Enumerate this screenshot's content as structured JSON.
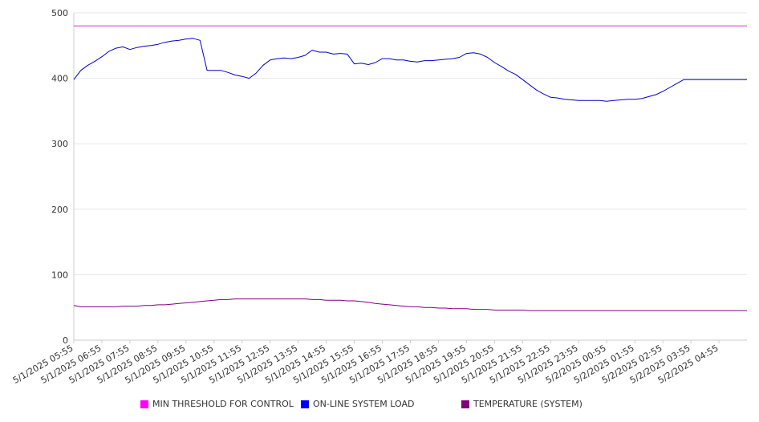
{
  "chart_data": {
    "type": "line",
    "title": "",
    "xlabel": "",
    "ylabel": "",
    "ylim": [
      0,
      500
    ],
    "yticks": [
      0,
      100,
      200,
      300,
      400,
      500
    ],
    "grid": true,
    "legend_position": "bottom",
    "x_tick_labels": [
      "5/1/2025 05:55",
      "5/1/2025 06:55",
      "5/1/2025 07:55",
      "5/1/2025 08:55",
      "5/1/2025 09:55",
      "5/1/2025 10:55",
      "5/1/2025 11:55",
      "5/1/2025 12:55",
      "5/1/2025 13:55",
      "5/1/2025 14:55",
      "5/1/2025 15:55",
      "5/1/2025 16:55",
      "5/1/2025 17:55",
      "5/1/2025 18:55",
      "5/1/2025 19:55",
      "5/1/2025 20:55",
      "5/1/2025 21:55",
      "5/1/2025 22:55",
      "5/1/2025 23:55",
      "5/2/2025 00:55",
      "5/2/2025 01:55",
      "5/2/2025 02:55",
      "5/2/2025 03:55",
      "5/2/2025 04:55"
    ],
    "x_hours": [
      0,
      0.25,
      0.5,
      0.75,
      1.0,
      1.25,
      1.5,
      1.75,
      2.0,
      2.25,
      2.5,
      2.75,
      3.0,
      3.25,
      3.5,
      3.75,
      4.0,
      4.25,
      4.5,
      4.75,
      5.0,
      5.25,
      5.5,
      5.75,
      6.0,
      6.25,
      6.5,
      6.75,
      7.0,
      7.25,
      7.5,
      7.75,
      8.0,
      8.25,
      8.5,
      8.75,
      9.0,
      9.25,
      9.5,
      9.75,
      10.0,
      10.25,
      10.5,
      10.75,
      11.0,
      11.25,
      11.5,
      11.75,
      12.0,
      12.25,
      12.5,
      12.75,
      13.0,
      13.25,
      13.5,
      13.75,
      14.0,
      14.25,
      14.5,
      14.75,
      15.0,
      15.25,
      15.5,
      15.75,
      16.0,
      16.25,
      16.5,
      16.75,
      17.0,
      17.25,
      17.5,
      17.75,
      18.0,
      18.25,
      18.5,
      18.75,
      19.0,
      19.25,
      19.5,
      19.75,
      20.0,
      20.25,
      20.5,
      20.75,
      21.0,
      21.25,
      21.5,
      21.75,
      22.0,
      22.25,
      22.5,
      22.75,
      23.0,
      23.25,
      23.5,
      23.75,
      24.0
    ],
    "series": [
      {
        "name": "MIN THRESHOLD FOR CONTROL",
        "color": "#cc33cc",
        "values": [
          480,
          480,
          480,
          480,
          480,
          480,
          480,
          480,
          480,
          480,
          480,
          480,
          480,
          480,
          480,
          480,
          480,
          480,
          480,
          480,
          480,
          480,
          480,
          480,
          480,
          480,
          480,
          480,
          480,
          480,
          480,
          480,
          480,
          480,
          480,
          480,
          480,
          480,
          480,
          480,
          480,
          480,
          480,
          480,
          480,
          480,
          480,
          480,
          480,
          480,
          480,
          480,
          480,
          480,
          480,
          480,
          480,
          480,
          480,
          480,
          480,
          480,
          480,
          480,
          480,
          480,
          480,
          480,
          480,
          480,
          480,
          480,
          480,
          480,
          480,
          480,
          480,
          480,
          480,
          480,
          480,
          480,
          480,
          480,
          480,
          480,
          480,
          480,
          480,
          480,
          480,
          480,
          480,
          480,
          480,
          480,
          480
        ]
      },
      {
        "name": "ON-LINE SYSTEM LOAD",
        "color": "#0000cc",
        "values": [
          398,
          412,
          420,
          426,
          433,
          441,
          446,
          448,
          444,
          447,
          449,
          450,
          452,
          455,
          457,
          458,
          460,
          461,
          458,
          412,
          412,
          412,
          409,
          405,
          403,
          400,
          408,
          420,
          428,
          430,
          431,
          430,
          432,
          435,
          443,
          440,
          440,
          437,
          438,
          437,
          422,
          423,
          421,
          424,
          430,
          430,
          428,
          428,
          426,
          425,
          427,
          427,
          428,
          429,
          430,
          432,
          438,
          439,
          437,
          432,
          424,
          418,
          411,
          406,
          398,
          390,
          382,
          376,
          371,
          370,
          368,
          367,
          366,
          366,
          366,
          366,
          365,
          366,
          367,
          368,
          368,
          369,
          372,
          375,
          380,
          386,
          392,
          398,
          398,
          398,
          398,
          398,
          398,
          398,
          398,
          398,
          398
        ]
      },
      {
        "name": "TEMPERATURE (SYSTEM)",
        "color": "#800080",
        "values": [
          53,
          51,
          51,
          51,
          51,
          51,
          51,
          52,
          52,
          52,
          53,
          53,
          54,
          54,
          55,
          56,
          57,
          58,
          59,
          60,
          61,
          62,
          62,
          63,
          63,
          63,
          63,
          63,
          63,
          63,
          63,
          63,
          63,
          63,
          62,
          62,
          61,
          61,
          61,
          60,
          60,
          59,
          58,
          56,
          55,
          54,
          53,
          52,
          51,
          51,
          50,
          50,
          49,
          49,
          48,
          48,
          48,
          47,
          47,
          47,
          46,
          46,
          46,
          46,
          46,
          45,
          45,
          45,
          45,
          45,
          45,
          45,
          45,
          45,
          45,
          45,
          45,
          45,
          45,
          45,
          45,
          45,
          45,
          45,
          45,
          45,
          45,
          45,
          45,
          45,
          45,
          45,
          45,
          45,
          45,
          45,
          45
        ]
      }
    ]
  }
}
